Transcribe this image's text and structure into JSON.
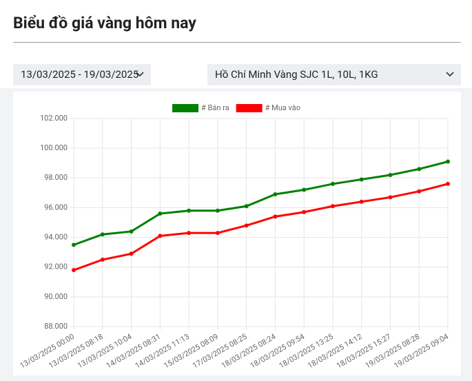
{
  "header": {
    "title": "Biểu đồ giá vàng hôm nay"
  },
  "filters": {
    "date_range": "13/03/2025 - 19/03/2025",
    "product": "Hồ Chí Minh Vàng SJC 1L, 10L, 1KG"
  },
  "chart_data": {
    "type": "line",
    "categories": [
      "13/03/2025 00:00",
      "13/03/2025 08:18",
      "13/03/2025 10:04",
      "14/03/2025 08:31",
      "14/03/2025 11:13",
      "15/03/2025 08:09",
      "17/03/2025 08:25",
      "18/03/2025 08:24",
      "18/03/2025 09:54",
      "18/03/2025 13:25",
      "18/03/2025 14:12",
      "18/03/2025 15:27",
      "19/03/2025 08:28",
      "19/03/2025 09:04"
    ],
    "series": [
      {
        "name": "# Bán ra",
        "color": "#008000",
        "values": [
          93500,
          94200,
          94400,
          95600,
          95800,
          95800,
          96100,
          96900,
          97200,
          97600,
          97900,
          98200,
          98600,
          99100
        ]
      },
      {
        "name": "# Mua vào",
        "color": "#ff0000",
        "values": [
          91800,
          92500,
          92900,
          94100,
          94300,
          94300,
          94800,
          95400,
          95700,
          96100,
          96400,
          96700,
          97100,
          97600
        ]
      }
    ],
    "ylim": [
      88000,
      102000
    ],
    "yticks": [
      {
        "value": 88000,
        "label": "88.000"
      },
      {
        "value": 90000,
        "label": "90.000"
      },
      {
        "value": 92000,
        "label": "92.000"
      },
      {
        "value": 94000,
        "label": "94.000"
      },
      {
        "value": 96000,
        "label": "96.000"
      },
      {
        "value": 98000,
        "label": "98.000"
      },
      {
        "value": 100000,
        "label": "100.000"
      },
      {
        "value": 102000,
        "label": "102.000"
      }
    ],
    "grid": true
  }
}
